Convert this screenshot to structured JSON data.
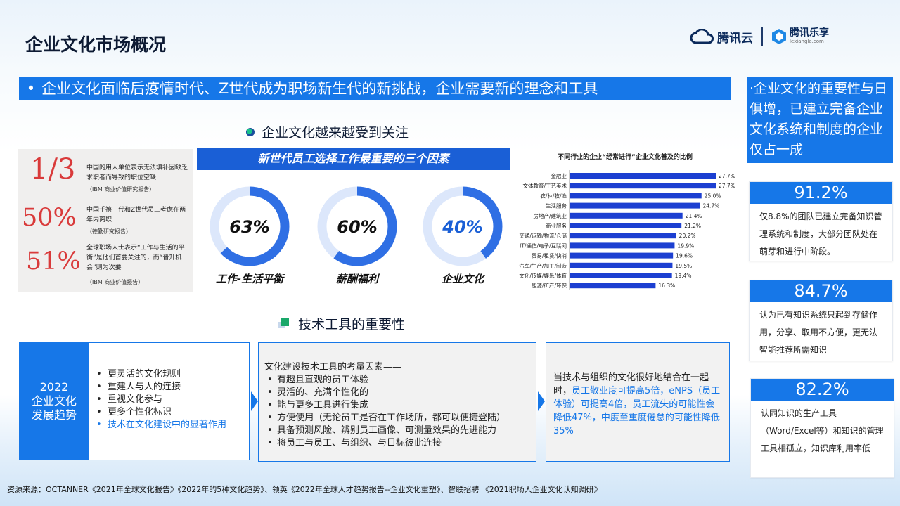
{
  "title": "企业文化市场概况",
  "logos": {
    "tencent_cloud": "腾讯云",
    "lexiang": "腾讯乐享",
    "lexiang_url": "lexiangla.com"
  },
  "banner": {
    "bullet": "•",
    "text": "企业文化面临后疫情时代、Z世代成为职场新生代的新挑战，企业需要新的理念和工具"
  },
  "side_top": "·企业文化的重要性与日俱增，已建立完备企业文化系统和制度的企业仅占一成",
  "section1_title": "企业文化越来越受到关注",
  "section2_title": "技术工具的重要性",
  "stats": [
    {
      "value": "1/3",
      "desc": "中国的用人单位表示无法填补因缺乏求职者而导致的职位空缺",
      "source": "（IBM 商业价值研究报告）"
    },
    {
      "value": "50%",
      "desc": "中国千禧一代和Z世代员工考虑在两年内离职",
      "source": "（德勤研究报告）"
    },
    {
      "value": "51%",
      "desc": "全球职场人士表示“工作与生活的平衡”是他们首要关注的，而“晋升机会”则为次要",
      "source": "（IBM 商业价值报告）"
    }
  ],
  "factors": {
    "header": "新世代员工选择工作最重要的三个因素",
    "items": [
      {
        "value": "63%",
        "pct": 63,
        "label": "工作-生活平衡",
        "color": "#111111"
      },
      {
        "value": "60%",
        "pct": 60,
        "label": "薪酬福利",
        "color": "#111111"
      },
      {
        "value": "40%",
        "pct": 40,
        "label": "企业文化",
        "color": "#1a5fd6"
      }
    ]
  },
  "chart_data": {
    "type": "bar",
    "orientation": "horizontal",
    "title": "不同行业的企业“经常进行”企业文化普及的比例",
    "categories": [
      "金融业",
      "文体教育/工艺美术",
      "农/林/牧/渔",
      "生活服务",
      "房地产/建筑业",
      "商业服务",
      "交通/运输/物流/仓储",
      "IT/通信/电子/互联网",
      "贸易/租赁/快消",
      "汽车/生产/加工/制造",
      "文化/传媒/娱乐/体育",
      "能源/矿产/环保"
    ],
    "values": [
      27.7,
      27.7,
      25.0,
      24.7,
      21.4,
      21.2,
      20.2,
      19.9,
      19.6,
      19.5,
      19.4,
      16.3
    ],
    "value_labels": [
      "27.7%",
      "27.7%",
      "25.0%",
      "24.7%",
      "21.4%",
      "21.2%",
      "20.2%",
      "19.9%",
      "19.6%",
      "19.5%",
      "19.4%",
      "16.3%"
    ],
    "xlim": [
      0,
      30
    ],
    "bar_color": "#1c3fd1",
    "grid": false,
    "legend": "none"
  },
  "side_cards": [
    {
      "value": "91.2%",
      "text": "仅8.8%的团队已建立完备知识管理系统和制度，大部分团队处在萌芽和进行中阶段。"
    },
    {
      "value": "84.7%",
      "text": "认为已有知识系统只起到存储作用，分享、取用不方便，更无法智能推荐所需知识"
    },
    {
      "value": "82.2%",
      "text": "认同知识的生产工具（Word/Excel等）和知识的管理工具相孤立，知识库利用率低"
    }
  ],
  "trend": {
    "title_lines": [
      "2022",
      "企业文化",
      "发展趋势"
    ],
    "items": [
      "更灵活的文化规则",
      "重建人与人的连接",
      "重视文化参与",
      "更多个性化标识",
      "技术在文化建设中的显著作用"
    ]
  },
  "tool_factors": {
    "title": "文化建设技术工具的考量因素——",
    "items": [
      "有趣且直观的员工体验",
      "灵活的、充满个性化的",
      "能与更多工具进行集成",
      "方便使用（无论员工是否在工作场所，都可以便捷登陆）",
      "具备预测风险、辨别员工画像、可测量效果的先进能力",
      "将员工与员工、与组织、与目标彼此连接"
    ]
  },
  "impact": {
    "text_plain": "当技术与组织的文化很好地结合在一起时，",
    "text_highlight": "员工敬业度可提高5倍，eNPS（员工体验）可提高4倍，员工流失的可能性会降低47%，中度至重度倦怠的可能性降低 35%"
  },
  "source": "资源来源：OCTANNER《2021年全球文化报告》《2022年的5种文化趋势》、领英《2022年全球人才趋势报告--企业文化重塑》、智联招聘 《2021职场人企业文化认知调研》"
}
